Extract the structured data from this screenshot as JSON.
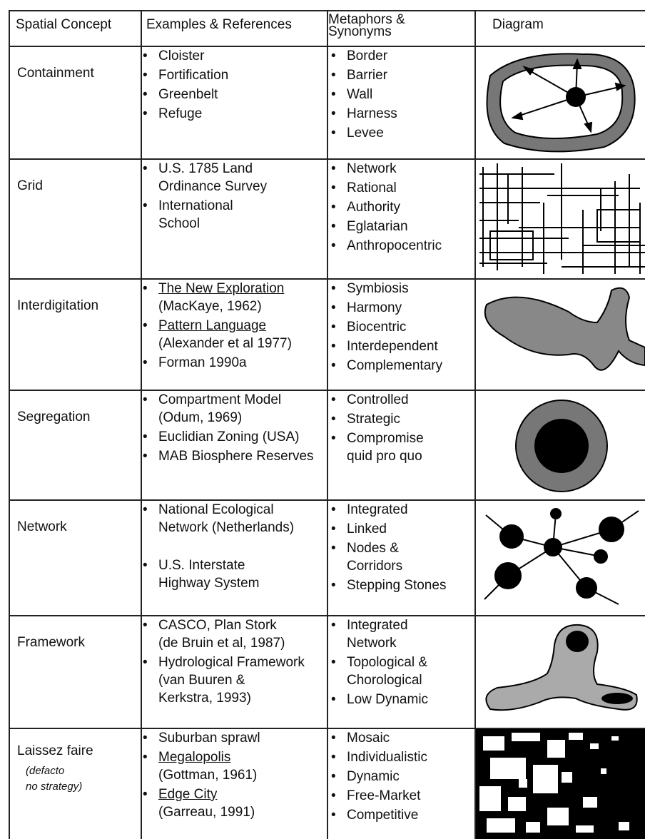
{
  "table": {
    "header": [
      "Spatial Concept",
      "Examples & References",
      "Metaphors &",
      "Synonyms",
      "Diagram"
    ],
    "rows": [
      {
        "concept": "Containment",
        "examples": [
          [
            "Cloister"
          ],
          [
            "Fortification"
          ],
          [
            "Greenbelt"
          ],
          [
            "Refuge"
          ]
        ],
        "metaphors": [
          [
            "Border"
          ],
          [
            "Barrier"
          ],
          [
            "Wall"
          ],
          [
            "Harness"
          ],
          [
            "Levee"
          ]
        ]
      },
      {
        "concept": "Grid",
        "examples": [
          [
            "U.S. 1785 Land",
            "Ordinance Survey"
          ],
          [
            "International",
            "School"
          ]
        ],
        "metaphors": [
          [
            "Network"
          ],
          [
            "Rational"
          ],
          [
            "Authority"
          ],
          [
            "Eglatarian"
          ],
          [
            "Anthropocentric"
          ]
        ]
      },
      {
        "concept": "Interdigitation",
        "examples": [
          [
            {
              "text": "The New Exploration",
              "underline": true
            },
            "(MacKaye, 1962)"
          ],
          [
            {
              "text": "Pattern Language",
              "underline": true
            },
            "(Alexander et al 1977)"
          ],
          [
            "Forman  1990a"
          ]
        ],
        "metaphors": [
          [
            "Symbiosis"
          ],
          [
            "Harmony"
          ],
          [
            "Biocentric"
          ],
          [
            "Interdependent"
          ],
          [
            "Complementary"
          ]
        ]
      },
      {
        "concept": "Segregation",
        "examples": [
          [
            "Compartment Model",
            "(Odum, 1969)"
          ],
          [
            "Euclidian Zoning  (USA)"
          ],
          [
            "MAB Biosphere Reserves"
          ]
        ],
        "metaphors": [
          [
            "Controlled"
          ],
          [
            "Strategic"
          ],
          [
            "Compromise",
            "quid pro quo"
          ]
        ]
      },
      {
        "concept": "Network",
        "examples": [
          [
            "National Ecological",
            "Network (Netherlands)"
          ],
          [
            "U.S. Interstate",
            "Highway System"
          ]
        ],
        "metaphors": [
          [
            "Integrated"
          ],
          [
            "Linked"
          ],
          [
            "Nodes &",
            "Corridors"
          ],
          [
            "Stepping Stones"
          ]
        ]
      },
      {
        "concept": "Framework",
        "examples": [
          [
            "CASCO, Plan Stork",
            "(de Bruin et al, 1987)"
          ],
          [
            "Hydrological Framework",
            "(van Buuren &",
            "Kerkstra, 1993)"
          ]
        ],
        "metaphors": [
          [
            "Integrated",
            "Network"
          ],
          [
            "Topological &",
            "Chorological"
          ],
          [
            "Low Dynamic"
          ]
        ]
      },
      {
        "concept": "Laissez faire",
        "note": [
          "(defacto",
          "no strategy)"
        ],
        "examples": [
          [
            "Suburban sprawl"
          ],
          [
            {
              "text": "Megalopolis",
              "underline": true
            },
            "(Gottman, 1961)"
          ],
          [
            {
              "text": "Edge City",
              "underline": true
            },
            "(Garreau, 1991)"
          ]
        ],
        "metaphors": [
          [
            "Mosaic"
          ],
          [
            "Individualistic"
          ],
          [
            "Dynamic"
          ],
          [
            "Free-Market"
          ],
          [
            "Competitive"
          ]
        ]
      }
    ]
  }
}
